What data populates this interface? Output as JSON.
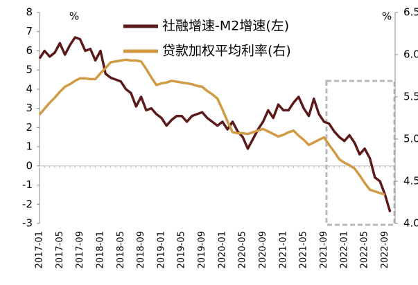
{
  "chart_data": {
    "type": "line",
    "ylabel": "%",
    "y2label": "%",
    "categories": [
      "2017-01",
      null,
      null,
      null,
      "2017-05",
      null,
      null,
      null,
      "2017-09",
      null,
      null,
      null,
      "2018-01",
      null,
      null,
      null,
      "2018-05",
      null,
      null,
      null,
      "2018-09",
      null,
      null,
      null,
      "2019-01",
      null,
      null,
      null,
      "2019-05",
      null,
      null,
      null,
      "2019-09",
      null,
      null,
      null,
      "2020-01",
      null,
      null,
      null,
      "2020-05",
      null,
      null,
      null,
      "2020-09",
      null,
      null,
      null,
      "2021-01",
      null,
      null,
      null,
      "2021-05",
      null,
      null,
      null,
      "2021-09",
      null,
      null,
      null,
      "2022-01",
      null,
      null,
      null,
      "2022-05",
      null,
      null,
      null,
      "2022-09",
      null
    ],
    "series": [
      {
        "name": "社融增速-M2增速(左)",
        "color": "#5c1a1b",
        "axis": "y",
        "values": [
          5.6,
          6.0,
          5.7,
          5.9,
          6.4,
          5.8,
          6.3,
          6.7,
          6.6,
          6.0,
          6.1,
          5.5,
          6.0,
          4.8,
          4.6,
          4.5,
          4.4,
          4.0,
          3.8,
          3.1,
          3.6,
          2.9,
          3.0,
          2.7,
          2.5,
          2.1,
          2.4,
          2.6,
          2.6,
          2.3,
          2.6,
          2.7,
          2.8,
          2.5,
          2.3,
          2.1,
          2.3,
          1.9,
          2.3,
          1.8,
          1.5,
          0.9,
          1.4,
          1.9,
          2.3,
          2.9,
          2.5,
          3.2,
          2.9,
          2.9,
          3.3,
          3.6,
          3.0,
          2.6,
          3.5,
          2.7,
          2.3,
          2.2,
          1.8,
          1.5,
          1.3,
          1.6,
          1.2,
          0.6,
          0.9,
          0.4,
          -0.6,
          -0.8,
          -1.5,
          -2.4
        ]
      },
      {
        "name": "贷款加权平均利率(右)",
        "color": "#d19a44",
        "axis": "y2",
        "values": [
          5.29,
          5.36,
          5.43,
          5.49,
          5.56,
          5.62,
          5.65,
          5.69,
          5.72,
          5.72,
          5.71,
          5.71,
          5.78,
          5.84,
          5.91,
          5.92,
          5.93,
          5.94,
          5.93,
          5.93,
          5.92,
          5.83,
          5.73,
          5.64,
          5.66,
          5.67,
          5.69,
          5.68,
          5.67,
          5.66,
          5.65,
          5.63,
          5.62,
          5.57,
          5.53,
          5.48,
          5.35,
          5.21,
          5.08,
          5.07,
          5.07,
          5.06,
          5.08,
          5.1,
          5.12,
          5.09,
          5.06,
          5.03,
          5.05,
          5.08,
          5.1,
          5.04,
          4.99,
          4.93,
          4.96,
          4.99,
          5.02,
          4.93,
          4.85,
          4.76,
          4.72,
          4.69,
          4.65,
          4.57,
          4.48,
          4.4,
          4.38,
          4.36,
          4.34,
          null
        ]
      }
    ],
    "ylim": [
      -3,
      8
    ],
    "yticks": [
      -3,
      -2,
      -1,
      0,
      1,
      2,
      3,
      4,
      5,
      6,
      7,
      8
    ],
    "y2lim": [
      4.0,
      6.5
    ],
    "y2ticks": [
      {
        "value": 4.0,
        "label": "4.0"
      },
      {
        "value": 4.5,
        "label": "4.5"
      },
      {
        "value": 5.0,
        "label": "5.0"
      },
      {
        "value": 5.5,
        "label": "5.5"
      },
      {
        "value": 6.0,
        "label": "6.0"
      },
      {
        "value": 6.5,
        "label": "6.5"
      }
    ],
    "legend": "top"
  }
}
